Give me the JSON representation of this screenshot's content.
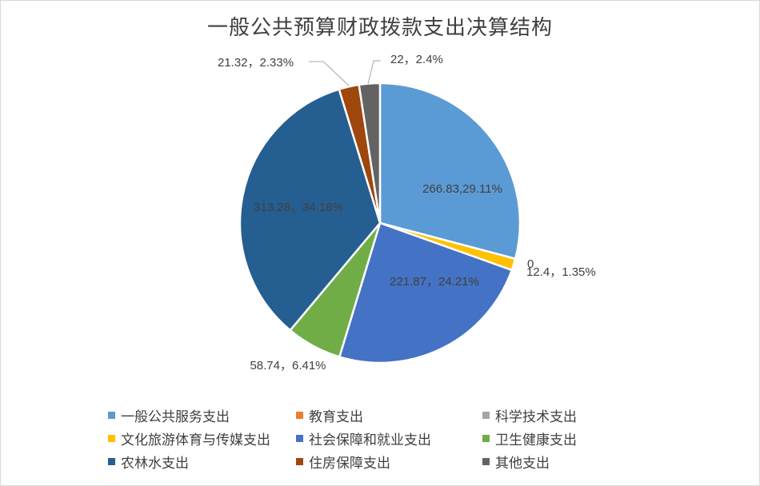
{
  "chart_data": {
    "type": "pie",
    "title": "一般公共预算财政拨款支出决算结构",
    "categories": [
      "一般公共服务支出",
      "教育支出",
      "科学技术支出",
      "文化旅游体育与传媒支出",
      "社会保障和就业支出",
      "卫生健康支出",
      "农林水支出",
      "住房保障支出",
      "其他支出"
    ],
    "values": [
      266.83,
      0,
      0,
      12.4,
      221.87,
      58.74,
      313.28,
      21.32,
      22
    ],
    "percents": [
      "29.11%",
      "",
      "",
      "1.35%",
      "24.21%",
      "6.41%",
      "34.18%",
      "2.33%",
      "2.4%"
    ],
    "colors": [
      "#5B9BD5",
      "#ED7D31",
      "#A5A5A5",
      "#FFC000",
      "#4472C4",
      "#70AD47",
      "#255E91",
      "#9E480E",
      "#636363"
    ],
    "data_labels": [
      {
        "text": "266.83,29.11%"
      },
      {
        "text": "0"
      },
      {
        "text": "12.4，1.35%"
      },
      {
        "text": "221.87，24.21%"
      },
      {
        "text": "58.74，6.41%"
      },
      {
        "text": "313.28，34.18%"
      },
      {
        "text": "21.32，2.33%"
      },
      {
        "text": "22，2.4%"
      }
    ],
    "legend_position": "bottom"
  }
}
